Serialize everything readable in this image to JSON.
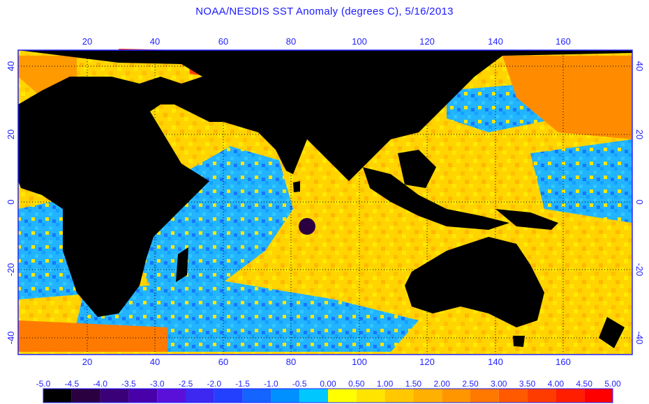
{
  "title": "NOAA/NESDIS SST Anomaly (degrees C), 5/16/2013",
  "map": {
    "lon_range": [
      0,
      180
    ],
    "lat_range": [
      -45,
      45
    ],
    "lon_ticks": [
      20,
      40,
      60,
      80,
      100,
      120,
      140,
      160
    ],
    "lat_ticks": [
      40,
      20,
      0,
      -20,
      -40
    ],
    "gridlines": "dotted",
    "land_color": "#000000",
    "frame_color": "#2222ff"
  },
  "colorbar": {
    "labels": [
      "-5.0",
      "-4.5",
      "-4.0",
      "-3.5",
      "-3.0",
      "-2.5",
      "-2.0",
      "-1.5",
      "-1.0",
      "-0.5",
      "0.00",
      "0.50",
      "1.00",
      "1.50",
      "2.00",
      "2.50",
      "3.00",
      "3.50",
      "4.00",
      "4.50",
      "5.00"
    ],
    "colors": [
      "#000000",
      "#2a0040",
      "#3a0078",
      "#4800a8",
      "#5a10d8",
      "#3c28f0",
      "#2440ff",
      "#1464ff",
      "#0090ff",
      "#00c8ff",
      "#ffff00",
      "#ffe400",
      "#ffc800",
      "#ffb000",
      "#ff9600",
      "#ff7800",
      "#ff5a00",
      "#ff3c00",
      "#ff1e00",
      "#ff0000"
    ]
  }
}
